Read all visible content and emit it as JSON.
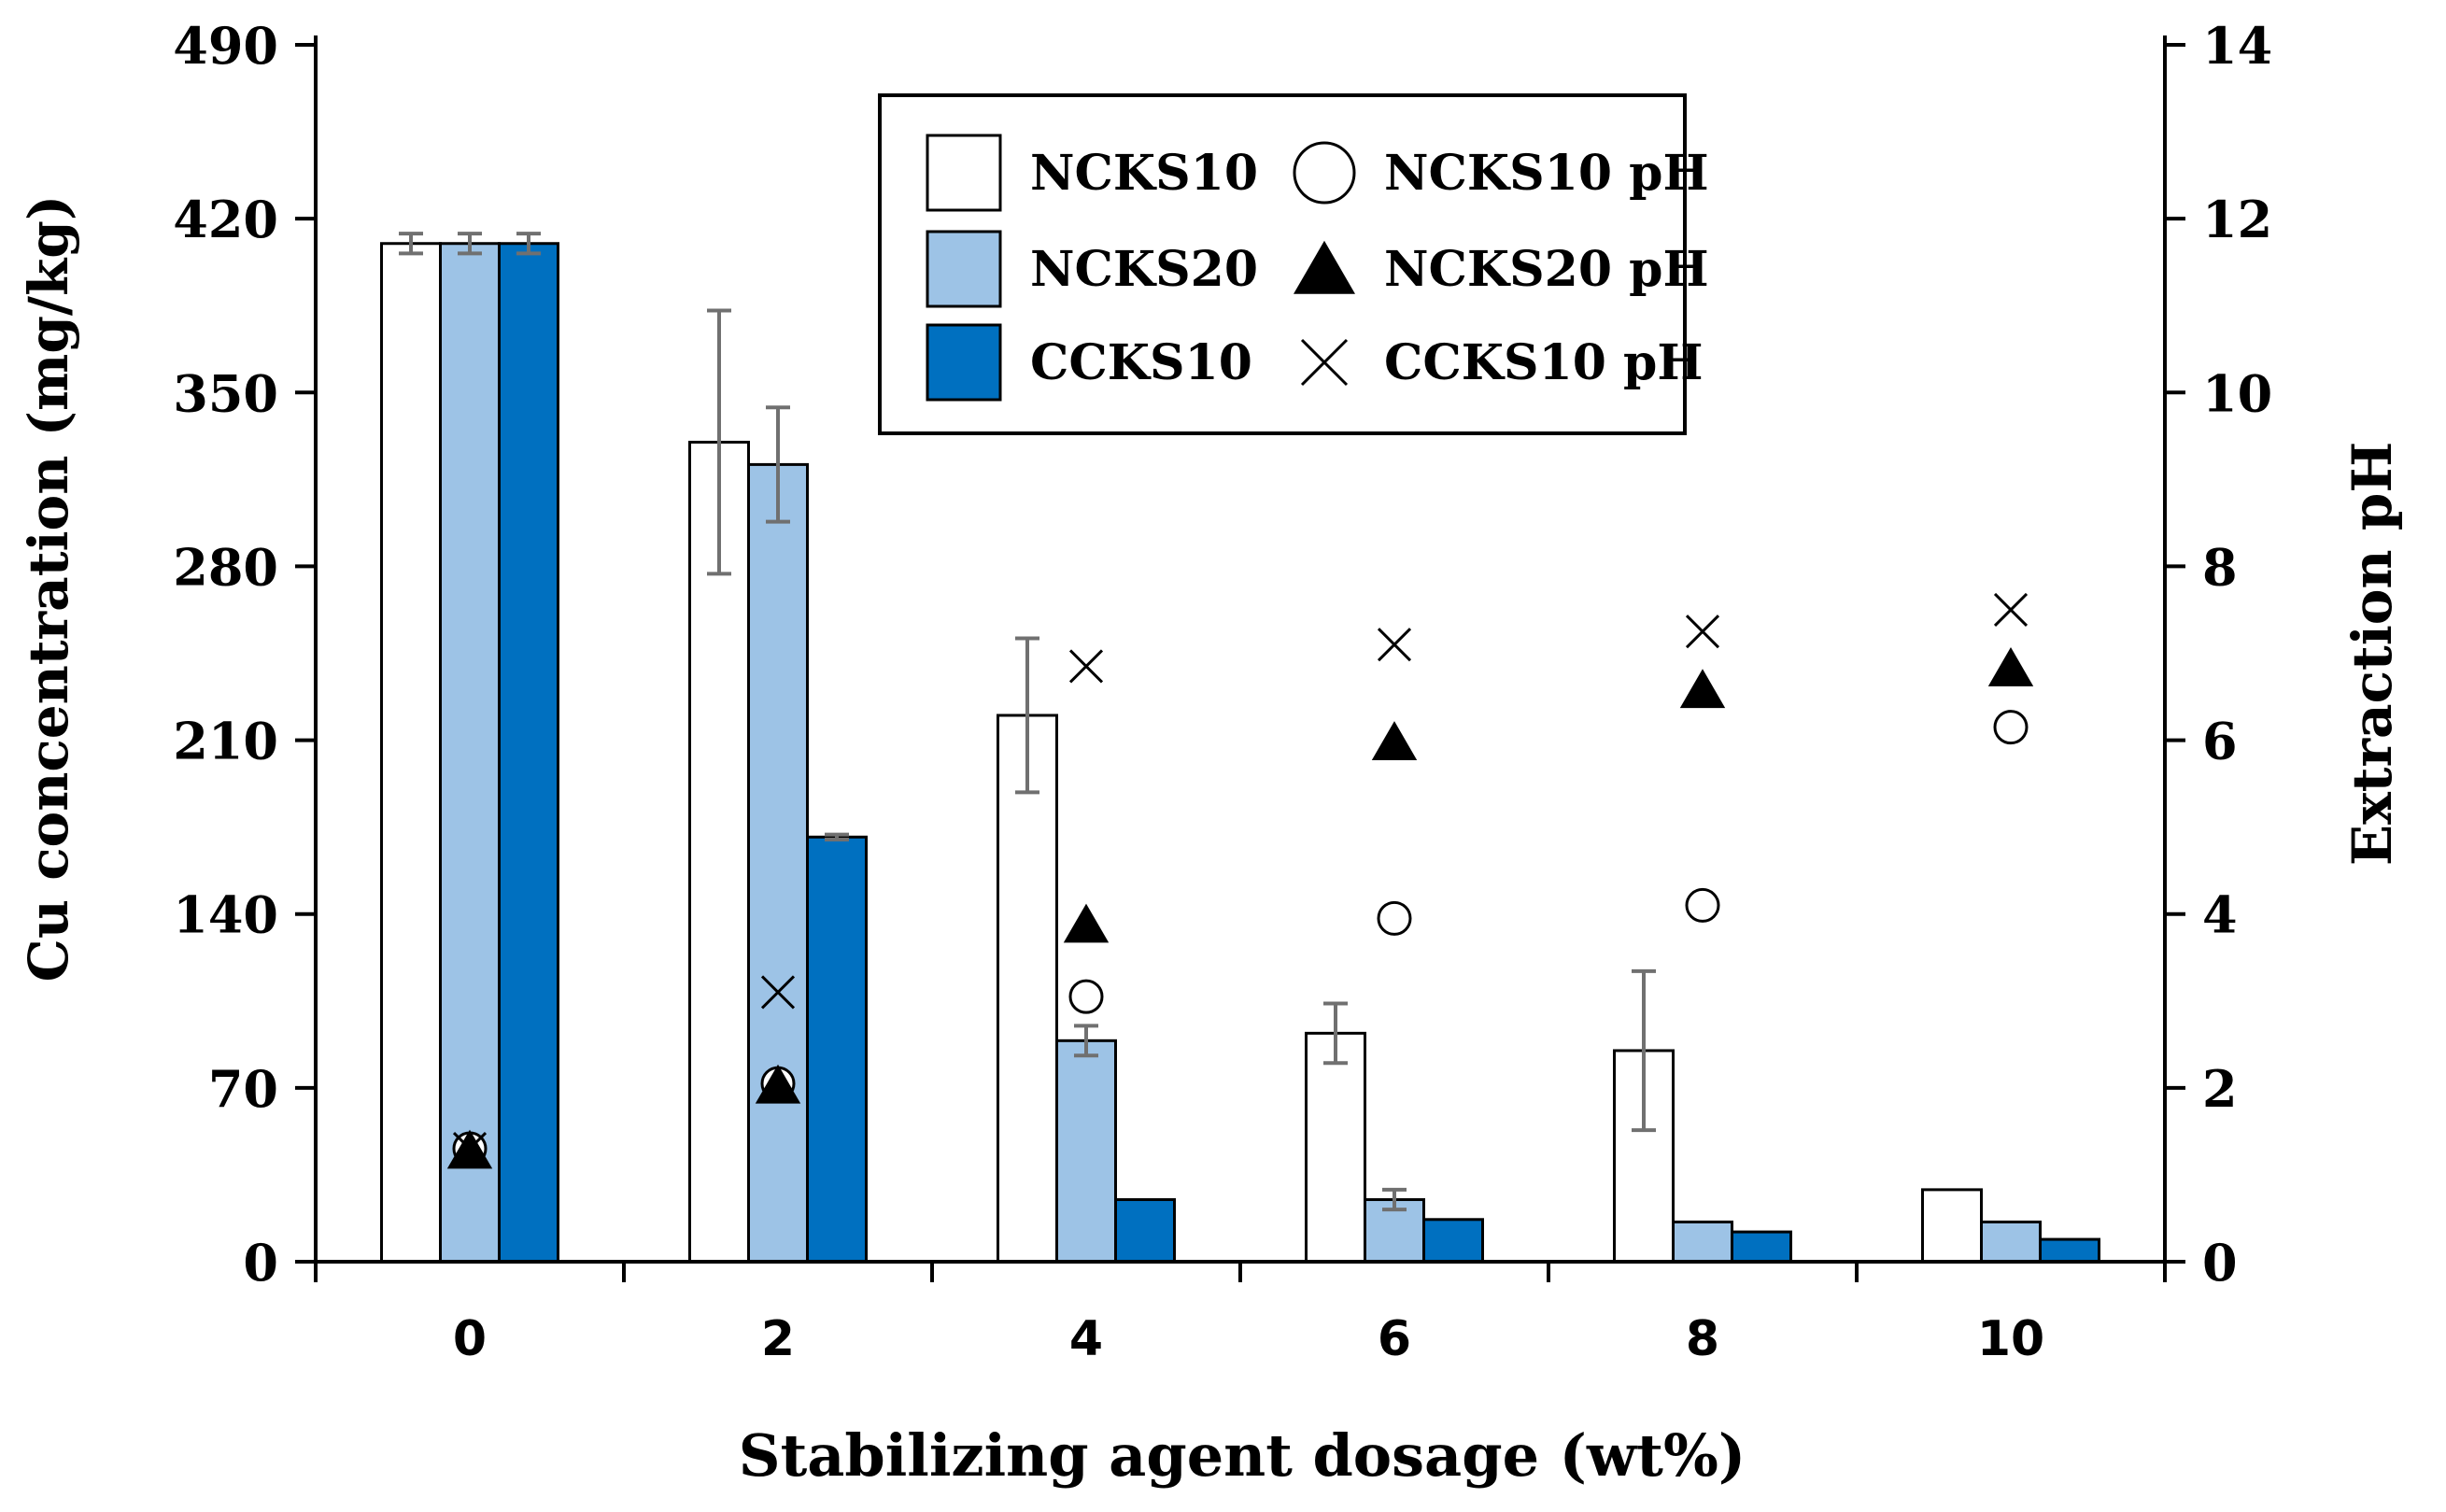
{
  "chart_data": {
    "type": "bar",
    "xlabel": "Stabilizing agent dosage (wt%)",
    "ylabel": "Cu concentration (mg/kg)",
    "y2label": "Extraction pH",
    "categories": [
      "0",
      "2",
      "4",
      "6",
      "8",
      "10"
    ],
    "ylim": [
      0,
      490
    ],
    "yticks": [
      "0",
      "70",
      "140",
      "210",
      "280",
      "350",
      "420",
      "490"
    ],
    "y2lim": [
      0,
      14
    ],
    "y2ticks": [
      "0",
      "2",
      "4",
      "6",
      "8",
      "10",
      "12",
      "14"
    ],
    "grid": false,
    "legend_position": "top-center",
    "series": [
      {
        "name": "NCKS10",
        "color": "#ffffff",
        "values": [
          410,
          330,
          220,
          92,
          85,
          29
        ],
        "errors": [
          4,
          53,
          31,
          12,
          32,
          0
        ]
      },
      {
        "name": "NCKS20",
        "color": "#9dc3e6",
        "values": [
          410,
          321,
          89,
          25,
          16,
          16
        ],
        "errors": [
          4,
          23,
          6,
          4,
          0,
          0
        ]
      },
      {
        "name": "CCKS10",
        "color": "#0070c0",
        "values": [
          410,
          171,
          25,
          17,
          12,
          9
        ],
        "errors": [
          4,
          1,
          0,
          0,
          0,
          0
        ]
      }
    ],
    "ph_series": [
      {
        "name": "NCKS10 pH",
        "marker": "circle",
        "values": [
          1.3,
          2.05,
          3.05,
          3.95,
          4.1,
          6.15
        ]
      },
      {
        "name": "NCKS20 pH",
        "marker": "triangle",
        "values": [
          1.25,
          2.0,
          3.85,
          5.95,
          6.55,
          6.8
        ]
      },
      {
        "name": "CCKS10 pH",
        "marker": "cross",
        "values": [
          1.3,
          3.1,
          6.85,
          7.1,
          7.25,
          7.5
        ]
      }
    ]
  }
}
